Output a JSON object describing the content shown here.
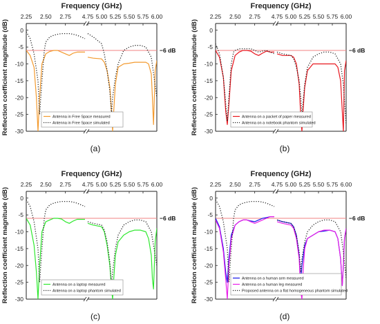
{
  "figure": {
    "panels": [
      {
        "caption": "(a)"
      },
      {
        "caption": "(b)"
      },
      {
        "caption": "(c)"
      },
      {
        "caption": "(d)"
      }
    ]
  },
  "chart_data": [
    {
      "type": "line",
      "title": "Frequency (GHz)",
      "xlabel": "Frequency (GHz)",
      "ylabel": "Reflection coefficient magnitude (dB)",
      "xticks": [
        "2.25",
        "2.50",
        "2.75",
        "4.75",
        "5.00",
        "5.25",
        "5.50",
        "5.75",
        "6.00"
      ],
      "yticks": [
        0,
        -5,
        -10,
        -15,
        -20,
        -25,
        -30
      ],
      "ylim": [
        -30,
        2
      ],
      "axis_break": true,
      "reference_line": {
        "y": -6,
        "label": "−6 dB",
        "color": "#f08080"
      },
      "series": [
        {
          "name": "Antenna in Free Space measured",
          "color": "#f39a2e",
          "style": "solid",
          "x": [
            2.25,
            2.3,
            2.35,
            2.38,
            2.4,
            2.42,
            2.45,
            2.5,
            2.55,
            2.6,
            2.65,
            2.7,
            2.75,
            2.8,
            2.85,
            2.9,
            2.95,
            3.0,
            4.75,
            4.85,
            5.0,
            5.05,
            5.1,
            5.15,
            5.18,
            5.2,
            5.22,
            5.25,
            5.3,
            5.4,
            5.5,
            5.6,
            5.7,
            5.8,
            5.85,
            5.9,
            5.92,
            5.94,
            5.97,
            6.0
          ],
          "y": [
            -6.0,
            -7.5,
            -11.0,
            -20.0,
            -30.0,
            -20.0,
            -10.0,
            -7.0,
            -6.3,
            -6.0,
            -6.0,
            -6.5,
            -7.0,
            -7.5,
            -6.8,
            -6.5,
            -6.5,
            -6.5,
            -8.0,
            -8.3,
            -8.5,
            -9.5,
            -12.0,
            -17.0,
            -24.0,
            -30.0,
            -24.0,
            -16.0,
            -11.0,
            -10.0,
            -9.8,
            -9.5,
            -9.5,
            -9.5,
            -10.0,
            -13.0,
            -20.0,
            -28.0,
            -12.0,
            -9.0
          ]
        },
        {
          "name": "Antenna in Free Space simulated",
          "color": "#222222",
          "style": "dotted",
          "x": [
            2.25,
            2.3,
            2.35,
            2.4,
            2.42,
            2.45,
            2.48,
            2.5,
            2.55,
            2.6,
            2.65,
            2.7,
            2.75,
            2.8,
            2.85,
            2.9,
            2.95,
            3.0,
            4.75,
            4.85,
            5.0,
            5.05,
            5.1,
            5.15,
            5.18,
            5.2,
            5.25,
            5.3,
            5.4,
            5.5,
            5.6,
            5.7,
            5.8,
            5.9,
            5.95,
            6.0
          ],
          "y": [
            -0.5,
            -2.5,
            -7.0,
            -15.0,
            -25.0,
            -15.0,
            -6.0,
            -3.5,
            -2.0,
            -1.5,
            -1.2,
            -1.0,
            -1.0,
            -1.0,
            -1.2,
            -1.5,
            -2.0,
            -2.5,
            -1.0,
            -2.0,
            -4.0,
            -7.0,
            -12.0,
            -18.0,
            -25.0,
            -20.0,
            -14.0,
            -10.0,
            -6.0,
            -5.0,
            -4.5,
            -4.5,
            -5.0,
            -8.0,
            -14.0,
            -20.0
          ]
        }
      ]
    },
    {
      "type": "line",
      "title": "Frequency (GHz)",
      "xlabel": "Frequency (GHz)",
      "ylabel": "Reflection coefficient magnitude (dB)",
      "xticks": [
        "2.25",
        "2.50",
        "2.75",
        "4.75",
        "5.00",
        "5.25",
        "5.50",
        "5.75",
        "6.00"
      ],
      "yticks": [
        0,
        -5,
        -10,
        -15,
        -20,
        -25,
        -30
      ],
      "ylim": [
        -30,
        2
      ],
      "axis_break": true,
      "reference_line": {
        "y": -6,
        "label": "−6 dB",
        "color": "#f08080"
      },
      "series": [
        {
          "name": "Antenna on a packet of paper measured",
          "color": "#e8141c",
          "style": "solid",
          "x": [
            2.25,
            2.3,
            2.35,
            2.38,
            2.4,
            2.42,
            2.45,
            2.5,
            2.55,
            2.6,
            2.65,
            2.7,
            2.75,
            2.8,
            2.85,
            2.9,
            2.95,
            3.0,
            4.75,
            4.85,
            5.0,
            5.05,
            5.1,
            5.15,
            5.18,
            5.2,
            5.22,
            5.25,
            5.3,
            5.4,
            5.5,
            5.6,
            5.7,
            5.8,
            5.85,
            5.9,
            5.93,
            5.95,
            5.97,
            6.0
          ],
          "y": [
            -6.0,
            -8.0,
            -14.0,
            -24.0,
            -28.0,
            -22.0,
            -12.0,
            -7.5,
            -6.5,
            -6.0,
            -6.0,
            -6.2,
            -7.0,
            -7.5,
            -6.8,
            -6.2,
            -6.5,
            -6.5,
            -7.0,
            -7.5,
            -7.5,
            -8.0,
            -10.0,
            -16.0,
            -26.0,
            -30.0,
            -24.0,
            -17.0,
            -12.0,
            -10.0,
            -10.0,
            -10.0,
            -10.0,
            -10.0,
            -11.0,
            -15.0,
            -24.0,
            -30.0,
            -12.0,
            -9.0
          ]
        },
        {
          "name": "Antenna on a notebook phantom simulated",
          "color": "#222222",
          "style": "dotted",
          "x": [
            2.25,
            2.3,
            2.35,
            2.4,
            2.42,
            2.45,
            2.48,
            2.5,
            2.55,
            2.6,
            2.65,
            2.7,
            2.75,
            2.8,
            2.85,
            2.9,
            2.95,
            3.0,
            4.75,
            4.85,
            5.0,
            5.05,
            5.1,
            5.15,
            5.18,
            5.2,
            5.25,
            5.3,
            5.4,
            5.5,
            5.6,
            5.7,
            5.8,
            5.9,
            5.95,
            6.0
          ],
          "y": [
            -4.0,
            -7.0,
            -14.0,
            -27.0,
            -20.0,
            -10.0,
            -6.5,
            -6.0,
            -5.5,
            -5.5,
            -5.5,
            -5.5,
            -6.0,
            -6.5,
            -6.2,
            -6.0,
            -6.5,
            -7.0,
            -6.5,
            -7.0,
            -7.5,
            -8.5,
            -11.0,
            -15.0,
            -20.0,
            -25.0,
            -16.0,
            -11.0,
            -8.0,
            -7.0,
            -6.5,
            -6.5,
            -7.0,
            -10.0,
            -16.0,
            -28.0
          ]
        }
      ]
    },
    {
      "type": "line",
      "title": "Frequency (GHz)",
      "xlabel": "Frequency (GHz)",
      "ylabel": "Reflection coefficient magnitude (dB)",
      "xticks": [
        "2.25",
        "2.50",
        "2.75",
        "4.75",
        "5.00",
        "5.25",
        "5.50",
        "5.75",
        "6.00"
      ],
      "yticks": [
        0,
        -5,
        -10,
        -15,
        -20,
        -25,
        -30
      ],
      "ylim": [
        -30,
        2
      ],
      "axis_break": true,
      "reference_line": {
        "y": -6,
        "label": "−6 dB",
        "color": "#f08080"
      },
      "series": [
        {
          "name": "Antenna on a laptop measured",
          "color": "#2ee82e",
          "style": "solid",
          "x": [
            2.25,
            2.3,
            2.35,
            2.38,
            2.4,
            2.42,
            2.45,
            2.5,
            2.55,
            2.6,
            2.65,
            2.7,
            2.75,
            2.8,
            2.85,
            2.9,
            2.95,
            3.0,
            4.75,
            4.85,
            5.0,
            5.05,
            5.1,
            5.15,
            5.18,
            5.2,
            5.22,
            5.25,
            5.3,
            5.4,
            5.5,
            5.6,
            5.7,
            5.8,
            5.85,
            5.9,
            5.92,
            5.94,
            5.97,
            6.0
          ],
          "y": [
            -6.0,
            -8.0,
            -14.0,
            -22.0,
            -30.0,
            -20.0,
            -10.0,
            -7.0,
            -6.5,
            -6.0,
            -6.0,
            -6.2,
            -7.0,
            -7.5,
            -6.8,
            -6.3,
            -6.3,
            -6.3,
            -7.5,
            -8.0,
            -8.5,
            -10.0,
            -14.0,
            -20.0,
            -27.0,
            -30.0,
            -24.0,
            -17.0,
            -13.0,
            -11.0,
            -10.0,
            -9.5,
            -9.5,
            -10.0,
            -12.0,
            -17.0,
            -24.0,
            -27.0,
            -13.0,
            -9.0
          ]
        },
        {
          "name": "Antenna on a laptop phantom simulated",
          "color": "#222222",
          "style": "dotted",
          "x": [
            2.25,
            2.3,
            2.35,
            2.4,
            2.42,
            2.45,
            2.48,
            2.5,
            2.55,
            2.6,
            2.65,
            2.7,
            2.75,
            2.8,
            2.85,
            2.9,
            2.95,
            3.0,
            4.75,
            4.85,
            5.0,
            5.05,
            5.1,
            5.15,
            5.18,
            5.2,
            5.25,
            5.3,
            5.4,
            5.5,
            5.6,
            5.7,
            5.8,
            5.9,
            5.95,
            6.0
          ],
          "y": [
            -0.5,
            -2.5,
            -7.0,
            -15.0,
            -25.0,
            -15.0,
            -6.0,
            -3.5,
            -2.0,
            -1.5,
            -1.2,
            -1.0,
            -1.0,
            -1.0,
            -1.2,
            -1.5,
            -2.0,
            -2.5,
            -7.0,
            -7.5,
            -8.0,
            -9.5,
            -13.0,
            -19.0,
            -26.0,
            -22.0,
            -15.0,
            -11.0,
            -8.0,
            -7.0,
            -6.5,
            -6.5,
            -7.0,
            -10.0,
            -15.0,
            -20.0
          ]
        }
      ]
    },
    {
      "type": "line",
      "title": "Frequency (GHz)",
      "xlabel": "Frequency (GHz)",
      "ylabel": "Reflection coefficient magnitude (dB)",
      "xticks": [
        "2.25",
        "2.50",
        "2.75",
        "4.75",
        "5.00",
        "5.25",
        "5.50",
        "5.75",
        "6.00"
      ],
      "yticks": [
        0,
        -5,
        -10,
        -15,
        -20,
        -25,
        -30
      ],
      "ylim": [
        -30,
        2
      ],
      "axis_break": true,
      "reference_line": {
        "y": -6,
        "label": "−6 dB",
        "color": "#f08080"
      },
      "series": [
        {
          "name": "Antenna on a human arm measured",
          "color": "#1414e8",
          "style": "solid",
          "x": [
            2.25,
            2.3,
            2.35,
            2.38,
            2.4,
            2.42,
            2.45,
            2.5,
            2.55,
            2.6,
            2.65,
            2.7,
            2.75,
            2.8,
            2.85,
            2.9,
            2.95,
            3.0,
            4.75,
            4.85,
            5.0,
            5.05,
            5.1,
            5.15,
            5.18,
            5.2,
            5.25,
            5.3,
            5.4,
            5.5,
            5.6,
            5.7,
            5.8,
            5.85,
            5.9,
            5.93,
            5.95,
            5.97,
            6.0
          ],
          "y": [
            -6.0,
            -8.5,
            -15.0,
            -22.0,
            -25.0,
            -18.0,
            -11.0,
            -8.0,
            -7.0,
            -6.5,
            -6.5,
            -6.8,
            -7.0,
            -6.5,
            -6.0,
            -5.8,
            -5.5,
            -5.5,
            -6.5,
            -7.0,
            -7.5,
            -8.5,
            -11.0,
            -17.0,
            -25.0,
            -20.0,
            -14.0,
            -12.0,
            -11.0,
            -10.0,
            -9.8,
            -9.5,
            -10.0,
            -12.0,
            -18.0,
            -26.0,
            -20.0,
            -12.0,
            -9.0
          ]
        },
        {
          "name": "Antenna on a human leg measured",
          "color": "#e81ce8",
          "style": "solid",
          "x": [
            2.25,
            2.3,
            2.35,
            2.38,
            2.4,
            2.42,
            2.45,
            2.5,
            2.55,
            2.6,
            2.65,
            2.7,
            2.75,
            2.8,
            2.85,
            2.9,
            2.95,
            3.0,
            4.75,
            4.85,
            5.0,
            5.05,
            5.1,
            5.15,
            5.18,
            5.2,
            5.22,
            5.25,
            5.3,
            5.4,
            5.5,
            5.6,
            5.7,
            5.8,
            5.85,
            5.9,
            5.93,
            5.95,
            5.97,
            6.0
          ],
          "y": [
            -6.5,
            -9.0,
            -16.0,
            -24.0,
            -30.0,
            -20.0,
            -12.0,
            -8.0,
            -7.0,
            -6.5,
            -6.5,
            -7.0,
            -7.5,
            -7.0,
            -6.5,
            -6.0,
            -5.5,
            -5.5,
            -7.0,
            -7.5,
            -8.0,
            -9.0,
            -12.0,
            -18.0,
            -28.0,
            -30.0,
            -22.0,
            -15.0,
            -12.0,
            -11.0,
            -10.0,
            -9.5,
            -9.5,
            -10.0,
            -12.0,
            -18.0,
            -26.0,
            -20.0,
            -12.0,
            -9.0
          ]
        },
        {
          "name": "Proposed antenna on a flat homogeneous phantom simulated",
          "color": "#222222",
          "style": "dotted",
          "x": [
            2.25,
            2.3,
            2.35,
            2.4,
            2.42,
            2.45,
            2.48,
            2.5,
            2.55,
            2.6,
            2.65,
            2.7,
            2.75,
            2.8,
            2.85,
            2.9,
            2.95,
            3.0,
            4.75,
            4.85,
            5.0,
            5.05,
            5.1,
            5.15,
            5.18,
            5.2,
            5.25,
            5.3,
            5.4,
            5.5,
            5.6,
            5.7,
            5.8,
            5.9,
            5.95,
            6.0
          ],
          "y": [
            -0.5,
            -2.5,
            -7.0,
            -15.0,
            -25.0,
            -15.0,
            -6.0,
            -3.5,
            -2.0,
            -1.5,
            -1.2,
            -1.0,
            -1.0,
            -1.0,
            -1.2,
            -1.5,
            -2.0,
            -2.5,
            -6.5,
            -7.0,
            -7.5,
            -8.5,
            -11.0,
            -16.0,
            -22.0,
            -18.0,
            -13.0,
            -10.0,
            -8.0,
            -7.0,
            -6.5,
            -6.5,
            -7.0,
            -10.0,
            -16.0,
            -24.0
          ]
        }
      ]
    }
  ]
}
